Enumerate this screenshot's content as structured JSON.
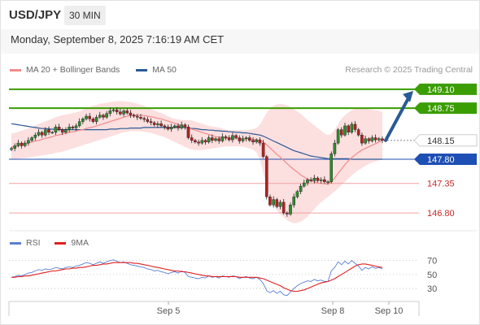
{
  "header": {
    "pair": "USD/JPY",
    "timeframe": "30 MIN"
  },
  "timestamp": "Monday, September 8, 2025 7:16:19 AM CET",
  "legend": {
    "ma20": {
      "label": "MA 20 + Bollinger Bands",
      "color": "#f28b8b"
    },
    "ma50": {
      "label": "MA 50",
      "color": "#2a5a96"
    }
  },
  "credit": "Research © 2025 Trading Central",
  "rsi_legend": {
    "rsi": {
      "label": "RSI",
      "color": "#5b7fd6"
    },
    "ma9": {
      "label": "9MA",
      "color": "#e02020"
    }
  },
  "chart_data": [
    {
      "type": "candlestick",
      "title": "",
      "y_range": [
        146.5,
        149.25
      ],
      "colors": {
        "up": "#2e8b2e",
        "down": "#b22222",
        "band": "#fbd9d9",
        "ma20": "#f28b8b",
        "ma50": "#2a5a96"
      },
      "levels": [
        {
          "value": 149.1,
          "label": "149.10",
          "style": "resistance",
          "color": "#3a9d00"
        },
        {
          "value": 148.75,
          "label": "148.75",
          "style": "resistance",
          "color": "#3a9d00"
        },
        {
          "value": 148.15,
          "label": "148.15",
          "style": "current",
          "color": "#333333"
        },
        {
          "value": 147.8,
          "label": "147.80",
          "style": "pivot",
          "color": "#1e4fb4"
        },
        {
          "value": 147.35,
          "label": "147.35",
          "style": "support",
          "color": "#c62828"
        },
        {
          "value": 146.8,
          "label": "146.80",
          "style": "support",
          "color": "#c62828"
        }
      ],
      "x_ticks": [
        "Sep 5",
        "Sep 8",
        "Sep 10"
      ],
      "close": [
        148.0,
        148.05,
        148.1,
        148.05,
        148.1,
        148.15,
        148.2,
        148.25,
        148.3,
        148.25,
        148.35,
        148.3,
        148.3,
        148.4,
        148.35,
        148.3,
        148.35,
        148.4,
        148.38,
        148.42,
        148.5,
        148.55,
        148.6,
        148.55,
        148.5,
        148.58,
        148.62,
        148.58,
        148.65,
        148.7,
        148.72,
        148.68,
        148.64,
        148.7,
        148.66,
        148.62,
        148.6,
        148.58,
        148.56,
        148.54,
        148.5,
        148.48,
        148.44,
        148.46,
        148.42,
        148.4,
        148.36,
        148.4,
        148.42,
        148.38,
        148.44,
        148.4,
        148.2,
        148.15,
        148.12,
        148.1,
        148.15,
        148.12,
        148.2,
        148.15,
        148.18,
        148.14,
        148.22,
        148.2,
        148.16,
        148.24,
        148.2,
        148.14,
        148.18,
        148.2,
        148.15,
        148.12,
        148.16,
        148.1,
        147.85,
        147.1,
        146.95,
        147.05,
        146.92,
        147.0,
        146.8,
        146.78,
        146.95,
        147.1,
        147.2,
        147.3,
        147.36,
        147.42,
        147.4,
        147.45,
        147.4,
        147.42,
        147.38,
        147.38,
        147.9,
        148.1,
        148.35,
        148.25,
        148.42,
        148.3,
        148.45,
        148.35,
        148.25,
        148.1,
        148.18,
        148.14,
        148.2,
        148.16,
        148.18,
        148.15
      ],
      "ma20": [
        148.02,
        148.03,
        148.05,
        148.07,
        148.09,
        148.1,
        148.12,
        148.14,
        148.15,
        148.17,
        148.19,
        148.2,
        148.22,
        148.24,
        148.25,
        148.27,
        148.28,
        148.3,
        148.31,
        148.32,
        148.34,
        148.35,
        148.37,
        148.39,
        148.4,
        148.42,
        148.44,
        148.46,
        148.48,
        148.5,
        148.52,
        148.54,
        148.56,
        148.58,
        148.6,
        148.61,
        148.62,
        148.62,
        148.62,
        148.61,
        148.6,
        148.59,
        148.58,
        148.56,
        148.55,
        148.53,
        148.51,
        148.49,
        148.47,
        148.45,
        148.42,
        148.4,
        148.38,
        148.36,
        148.34,
        148.32,
        148.3,
        148.28,
        148.26,
        148.24,
        148.22,
        148.21,
        148.2,
        148.19,
        148.19,
        148.19,
        148.19,
        148.18,
        148.18,
        148.18,
        148.17,
        148.17,
        148.16,
        148.15,
        148.12,
        148.07,
        148.01,
        147.95,
        147.89,
        147.84,
        147.78,
        147.72,
        147.66,
        147.61,
        147.56,
        147.51,
        147.47,
        147.43,
        147.4,
        147.38,
        147.36,
        147.35,
        147.34,
        147.34,
        147.38,
        147.45,
        147.54,
        147.62,
        147.7,
        147.77,
        147.83,
        147.88,
        147.93,
        147.97,
        148.0,
        148.03,
        148.06,
        148.09,
        148.12,
        148.15
      ],
      "bb_upper": [
        148.28,
        148.29,
        148.31,
        148.33,
        148.35,
        148.37,
        148.4,
        148.43,
        148.45,
        148.48,
        148.5,
        148.53,
        148.55,
        148.58,
        148.6,
        148.62,
        148.63,
        148.64,
        148.66,
        148.67,
        148.69,
        148.72,
        148.74,
        148.77,
        148.79,
        148.81,
        148.83,
        148.84,
        148.85,
        148.86,
        148.87,
        148.88,
        148.88,
        148.88,
        148.87,
        148.86,
        148.85,
        148.83,
        148.81,
        148.79,
        148.76,
        148.73,
        148.71,
        148.68,
        148.66,
        148.63,
        148.6,
        148.57,
        148.55,
        148.54,
        148.53,
        148.53,
        148.53,
        148.52,
        148.5,
        148.48,
        148.46,
        148.44,
        148.42,
        148.41,
        148.4,
        148.39,
        148.37,
        148.35,
        148.34,
        148.34,
        148.34,
        148.34,
        148.34,
        148.34,
        148.35,
        148.36,
        148.38,
        148.44,
        148.55,
        148.66,
        148.74,
        148.79,
        148.82,
        148.83,
        148.82,
        148.8,
        148.77,
        148.73,
        148.69,
        148.64,
        148.59,
        148.53,
        148.48,
        148.43,
        148.38,
        148.33,
        148.28,
        148.25,
        148.27,
        148.35,
        148.45,
        148.55,
        148.62,
        148.67,
        148.71,
        148.74,
        148.75,
        148.75,
        148.74,
        148.73,
        148.72,
        148.71,
        148.7,
        148.68
      ],
      "bb_lower": [
        147.8,
        147.8,
        147.81,
        147.82,
        147.82,
        147.83,
        147.84,
        147.85,
        147.86,
        147.87,
        147.88,
        147.89,
        147.9,
        147.92,
        147.93,
        147.94,
        147.96,
        147.98,
        148.0,
        148.02,
        148.04,
        148.06,
        148.08,
        148.1,
        148.12,
        148.14,
        148.16,
        148.18,
        148.2,
        148.22,
        148.24,
        148.26,
        148.28,
        148.3,
        148.31,
        148.32,
        148.32,
        148.32,
        148.32,
        148.31,
        148.3,
        148.29,
        148.27,
        148.25,
        148.23,
        148.21,
        148.18,
        148.15,
        148.12,
        148.09,
        148.06,
        148.03,
        148.0,
        147.98,
        147.97,
        147.97,
        147.97,
        147.98,
        147.99,
        148.0,
        148.01,
        148.02,
        148.03,
        148.04,
        148.04,
        148.04,
        148.04,
        148.04,
        148.03,
        148.02,
        148.0,
        147.98,
        147.93,
        147.8,
        147.55,
        147.3,
        147.1,
        146.95,
        146.85,
        146.78,
        146.72,
        146.67,
        146.63,
        146.61,
        146.62,
        146.64,
        146.68,
        146.73,
        146.8,
        146.87,
        146.94,
        147.0,
        147.05,
        147.1,
        147.15,
        147.2,
        147.26,
        147.32,
        147.38,
        147.44,
        147.5,
        147.55,
        147.6,
        147.64,
        147.68,
        147.71,
        147.74,
        147.76,
        147.78,
        147.8
      ],
      "ma50": [
        148.46,
        148.45,
        148.44,
        148.43,
        148.42,
        148.41,
        148.4,
        148.39,
        148.38,
        148.37,
        148.37,
        148.36,
        148.36,
        148.35,
        148.35,
        148.35,
        148.35,
        148.35,
        148.35,
        148.35,
        148.35,
        148.35,
        148.35,
        148.35,
        148.35,
        148.35,
        148.35,
        148.35,
        148.35,
        148.36,
        148.36,
        148.36,
        148.37,
        148.37,
        148.37,
        148.38,
        148.38,
        148.38,
        148.38,
        148.39,
        148.39,
        148.39,
        148.39,
        148.39,
        148.39,
        148.39,
        148.39,
        148.39,
        148.39,
        148.39,
        148.39,
        148.39,
        148.38,
        148.37,
        148.37,
        148.36,
        148.35,
        148.35,
        148.34,
        148.34,
        148.33,
        148.33,
        148.32,
        148.32,
        148.31,
        148.31,
        148.3,
        148.3,
        148.29,
        148.29,
        148.28,
        148.27,
        148.26,
        148.25,
        148.23,
        148.2,
        148.17,
        148.14,
        148.11,
        148.08,
        148.05,
        148.02,
        147.99,
        147.96,
        147.94,
        147.92,
        147.9,
        147.88,
        147.86,
        147.85,
        147.84,
        147.83,
        147.82,
        147.81,
        147.81,
        147.81,
        147.81,
        147.81,
        147.81,
        147.81,
        147.8,
        147.8,
        147.8,
        147.8,
        147.8,
        147.8,
        147.8,
        147.8,
        147.8,
        147.8
      ],
      "projection": {
        "from": 148.15,
        "to": 149.1
      }
    },
    {
      "type": "line",
      "title": "RSI",
      "y_range": [
        15,
        80
      ],
      "y_ticks": [
        70,
        50,
        30
      ],
      "series": [
        {
          "name": "RSI",
          "color": "#5b7fd6",
          "values": [
            46,
            47,
            49,
            48,
            50,
            52,
            53,
            55,
            57,
            56,
            58,
            57,
            58,
            60,
            59,
            58,
            60,
            61,
            60,
            62,
            63,
            65,
            67,
            66,
            64,
            66,
            68,
            66,
            68,
            70,
            71,
            69,
            67,
            68,
            66,
            64,
            63,
            62,
            61,
            60,
            58,
            57,
            55,
            56,
            54,
            53,
            51,
            53,
            54,
            52,
            55,
            53,
            47,
            46,
            45,
            44,
            46,
            45,
            48,
            46,
            47,
            45,
            48,
            47,
            46,
            48,
            47,
            44,
            46,
            47,
            45,
            44,
            46,
            43,
            37,
            27,
            24,
            27,
            23,
            26,
            21,
            20,
            25,
            30,
            34,
            37,
            39,
            41,
            40,
            43,
            41,
            42,
            40,
            40,
            55,
            60,
            68,
            64,
            69,
            65,
            70,
            66,
            62,
            56,
            60,
            58,
            61,
            59,
            60,
            58
          ]
        },
        {
          "name": "9MA",
          "color": "#e02020",
          "values": [
            46,
            46,
            47,
            47,
            48,
            48,
            49,
            50,
            51,
            52,
            53,
            54,
            55,
            55,
            56,
            57,
            58,
            58,
            59,
            59,
            60,
            60,
            61,
            62,
            63,
            63,
            64,
            65,
            65,
            66,
            67,
            67,
            67,
            67,
            67,
            67,
            66,
            66,
            65,
            64,
            63,
            62,
            61,
            60,
            59,
            58,
            57,
            56,
            55,
            55,
            54,
            54,
            53,
            52,
            51,
            50,
            49,
            48,
            48,
            47,
            47,
            47,
            47,
            47,
            47,
            47,
            47,
            46,
            46,
            46,
            46,
            46,
            46,
            45,
            44,
            42,
            40,
            38,
            36,
            34,
            31,
            29,
            27,
            26,
            26,
            27,
            28,
            30,
            32,
            34,
            36,
            38,
            39,
            40,
            42,
            44,
            47,
            50,
            53,
            56,
            59,
            62,
            64,
            65,
            65,
            64,
            63,
            62,
            61,
            60
          ]
        }
      ]
    }
  ]
}
